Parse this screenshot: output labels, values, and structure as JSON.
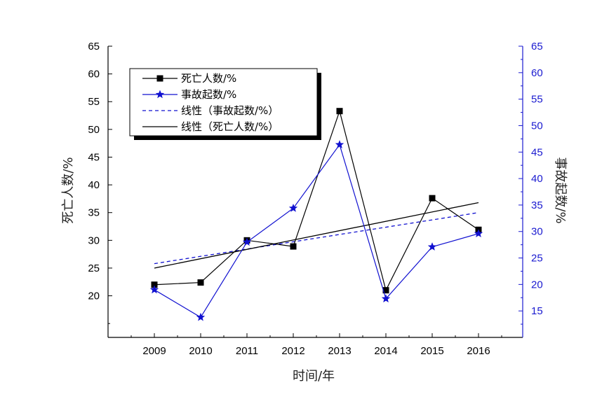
{
  "chart_data": {
    "type": "line",
    "xlabel": "时间/年",
    "ylabel_left": "死亡人数/%",
    "ylabel_right": "事故起数/%",
    "categories": [
      "2009",
      "2010",
      "2011",
      "2012",
      "2013",
      "2014",
      "2015",
      "2016"
    ],
    "y_left": {
      "range": [
        12.5,
        65
      ],
      "ticks": [
        20,
        25,
        30,
        35,
        40,
        45,
        50,
        55,
        60,
        65
      ]
    },
    "y_right": {
      "range": [
        10,
        65
      ],
      "ticks": [
        15,
        20,
        25,
        30,
        35,
        40,
        45,
        50,
        55,
        60,
        65
      ]
    },
    "series": [
      {
        "name": "死亡人数/%",
        "axis": "left",
        "marker": "square",
        "color": "#000000",
        "values": [
          22.0,
          22.4,
          30.0,
          28.9,
          53.3,
          21.0,
          37.6,
          31.9
        ]
      },
      {
        "name": "事故起数/%",
        "axis": "right",
        "marker": "star",
        "color": "#1010d0",
        "values": [
          19.0,
          13.8,
          28.0,
          34.4,
          46.4,
          17.3,
          27.1,
          29.6
        ]
      }
    ],
    "trendlines": [
      {
        "name": "线性（事故起数/%）",
        "axis": "left",
        "style": "dashed",
        "color": "#1010d0",
        "start": 25.8,
        "end": 35.0
      },
      {
        "name": "线性（死亡人数/%）",
        "axis": "left",
        "style": "solid",
        "color": "#000000",
        "start": 25.0,
        "end": 36.8
      }
    ],
    "legend": {
      "placement": "top-left",
      "entries": [
        "死亡人数/%",
        "事故起数/%",
        "线性（事故起数/%）",
        "线性（死亡人数/%）"
      ]
    },
    "grid": false
  }
}
